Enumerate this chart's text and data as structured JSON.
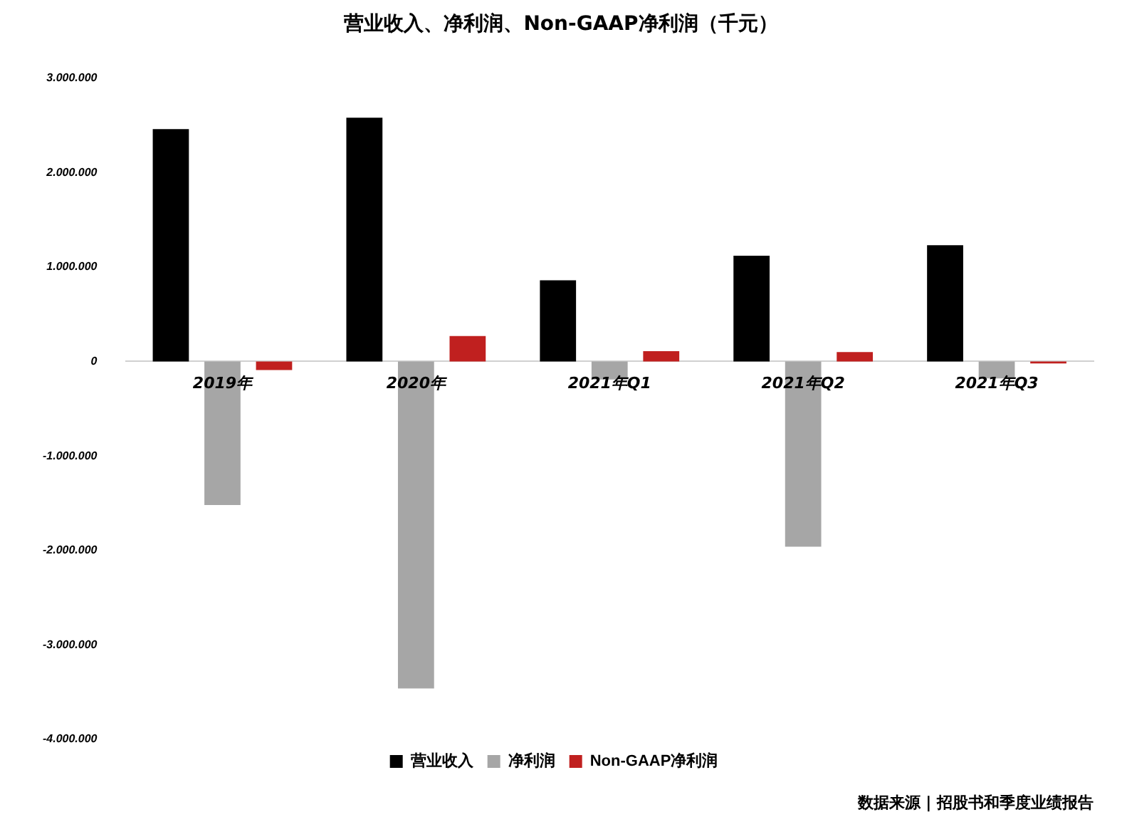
{
  "chart_data": {
    "type": "bar",
    "title": "营业收入、净利润、Non-GAAP净利润（千元）",
    "categories": [
      "2019年",
      "2020年",
      "2021年Q1",
      "2021年Q2",
      "2021年Q3"
    ],
    "series": [
      {
        "name": "营业收入",
        "color": "#000000",
        "values": [
          2460000,
          2580000,
          860000,
          1120000,
          1230000
        ]
      },
      {
        "name": "净利润",
        "color": "#a6a6a6",
        "values": [
          -1520000,
          -3460000,
          -190000,
          -1960000,
          -180000
        ]
      },
      {
        "name": "Non-GAAP净利润",
        "color": "#c0201f",
        "values": [
          -90000,
          270000,
          110000,
          100000,
          -20000
        ]
      }
    ],
    "ylim": [
      -4000000,
      3000000
    ],
    "yticks": [
      {
        "value": 3000000,
        "label": "3.000.000"
      },
      {
        "value": 2000000,
        "label": "2.000.000"
      },
      {
        "value": 1000000,
        "label": "1.000.000"
      },
      {
        "value": 0,
        "label": "0"
      },
      {
        "value": -1000000,
        "label": "-1.000.000"
      },
      {
        "value": -2000000,
        "label": "-2.000.000"
      },
      {
        "value": -3000000,
        "label": "-3.000.000"
      },
      {
        "value": -4000000,
        "label": "-4.000.000"
      }
    ],
    "grid": false,
    "legend": "bottom",
    "annotations": [
      "数据来源 | 招股书和季度业绩报告"
    ]
  }
}
